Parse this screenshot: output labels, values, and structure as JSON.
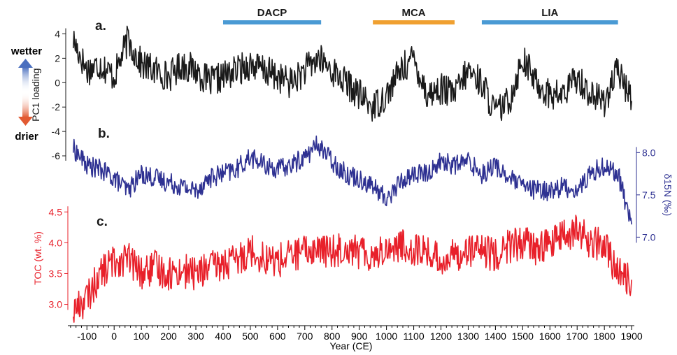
{
  "chart_data": {
    "type": "line",
    "xlabel": "Year (CE)",
    "x_ticks": [
      -100,
      0,
      100,
      200,
      300,
      400,
      500,
      600,
      700,
      800,
      900,
      1000,
      1100,
      1200,
      1300,
      1400,
      1500,
      1600,
      1700,
      1800,
      1900
    ],
    "x_tick_labels": [
      "-100",
      "0",
      "100",
      "200",
      "300",
      "400",
      "500",
      "600",
      "700",
      "800",
      "900",
      "1000",
      "1100",
      "1200",
      "1300",
      "1400",
      "1500",
      "1600",
      "1700",
      "1800",
      "1900"
    ],
    "xlim": [
      -170,
      1910
    ],
    "periods": [
      {
        "label": "DACP",
        "start": 400,
        "end": 760,
        "color": "#4a9ad4"
      },
      {
        "label": "MCA",
        "start": 950,
        "end": 1250,
        "color": "#f0a030"
      },
      {
        "label": "LIA",
        "start": 1350,
        "end": 1850,
        "color": "#4a9ad4"
      }
    ],
    "moisture_legend": {
      "top": "wetter",
      "bottom": "drier"
    },
    "panels": [
      {
        "letter": "a.",
        "ylabel": "PC1 loading",
        "ylim": [
          -6.4,
          4.6
        ],
        "y_ticks": [
          4,
          2,
          0,
          -2,
          -4,
          -6
        ],
        "y_tick_labels": [
          "4",
          "2",
          "0",
          "-2",
          "-4",
          "-6"
        ],
        "axis_side": "left",
        "color": "#1a1a1a",
        "series_name": "",
        "x": [
          -150,
          -100,
          -50,
          0,
          50,
          100,
          150,
          200,
          250,
          300,
          350,
          400,
          450,
          500,
          550,
          600,
          650,
          700,
          750,
          800,
          850,
          900,
          950,
          1000,
          1050,
          1100,
          1150,
          1200,
          1250,
          1300,
          1350,
          1400,
          1450,
          1500,
          1550,
          1600,
          1650,
          1700,
          1750,
          1800,
          1850,
          1900
        ],
        "y": [
          3.5,
          1.0,
          1.5,
          0.5,
          3.5,
          1.5,
          1.0,
          0.5,
          1.5,
          1.0,
          0,
          0.5,
          1.0,
          1.5,
          1.0,
          0.5,
          0,
          1.0,
          2.0,
          1.0,
          0,
          -1.0,
          -2.0,
          -1.0,
          1.0,
          2.0,
          -1.0,
          -0.5,
          -1.0,
          1.0,
          0,
          -2.5,
          -1.5,
          2.0,
          0,
          -1.0,
          -1.0,
          0.5,
          -1.0,
          -1.5,
          1.0,
          -1.5
        ]
      },
      {
        "letter": "b.",
        "ylabel": "δ15N (‰)",
        "ylim": [
          6.78,
          8.3
        ],
        "y_ticks": [
          8.0,
          7.5,
          7.0
        ],
        "y_tick_labels": [
          "8.0",
          "7.5",
          "7.0"
        ],
        "axis_side": "right",
        "color": "#2e3192",
        "series_name": "",
        "x": [
          -150,
          -100,
          -50,
          0,
          50,
          100,
          150,
          200,
          250,
          300,
          350,
          400,
          450,
          500,
          550,
          600,
          650,
          700,
          750,
          800,
          850,
          900,
          950,
          1000,
          1050,
          1100,
          1150,
          1200,
          1250,
          1300,
          1350,
          1400,
          1450,
          1500,
          1550,
          1600,
          1650,
          1700,
          1750,
          1800,
          1850,
          1900
        ],
        "y": [
          8.05,
          7.85,
          7.8,
          7.7,
          7.55,
          7.75,
          7.7,
          7.65,
          7.6,
          7.55,
          7.7,
          7.75,
          7.8,
          7.95,
          7.85,
          7.8,
          7.85,
          7.95,
          8.1,
          7.9,
          7.75,
          7.7,
          7.6,
          7.45,
          7.65,
          7.75,
          7.75,
          7.9,
          7.85,
          7.9,
          7.75,
          7.85,
          7.7,
          7.6,
          7.55,
          7.55,
          7.6,
          7.55,
          7.75,
          7.85,
          7.75,
          7.15
        ]
      },
      {
        "letter": "c.",
        "ylabel": "TOC (wt. %)",
        "ylim": [
          2.7,
          4.9
        ],
        "y_ticks": [
          4.5,
          4.0,
          3.5,
          3.0
        ],
        "y_tick_labels": [
          "4.5",
          "4.0",
          "3.5",
          "3.0"
        ],
        "axis_side": "left",
        "color": "#e8202a",
        "series_name": "",
        "x": [
          -150,
          -100,
          -50,
          0,
          50,
          100,
          150,
          200,
          250,
          300,
          350,
          400,
          450,
          500,
          550,
          600,
          650,
          700,
          750,
          800,
          850,
          900,
          950,
          1000,
          1050,
          1100,
          1150,
          1200,
          1250,
          1300,
          1350,
          1400,
          1450,
          1500,
          1550,
          1600,
          1650,
          1700,
          1750,
          1800,
          1850,
          1900
        ],
        "y": [
          2.9,
          3.1,
          3.5,
          3.7,
          3.75,
          3.5,
          3.6,
          3.5,
          3.55,
          3.5,
          3.6,
          3.65,
          3.7,
          3.9,
          3.75,
          3.7,
          3.8,
          3.85,
          3.9,
          3.85,
          3.95,
          3.85,
          3.8,
          3.9,
          3.95,
          3.9,
          3.85,
          3.7,
          3.8,
          3.9,
          3.85,
          3.8,
          3.95,
          4.0,
          3.9,
          4.0,
          4.1,
          4.2,
          4.0,
          3.95,
          3.5,
          3.4
        ]
      }
    ]
  }
}
